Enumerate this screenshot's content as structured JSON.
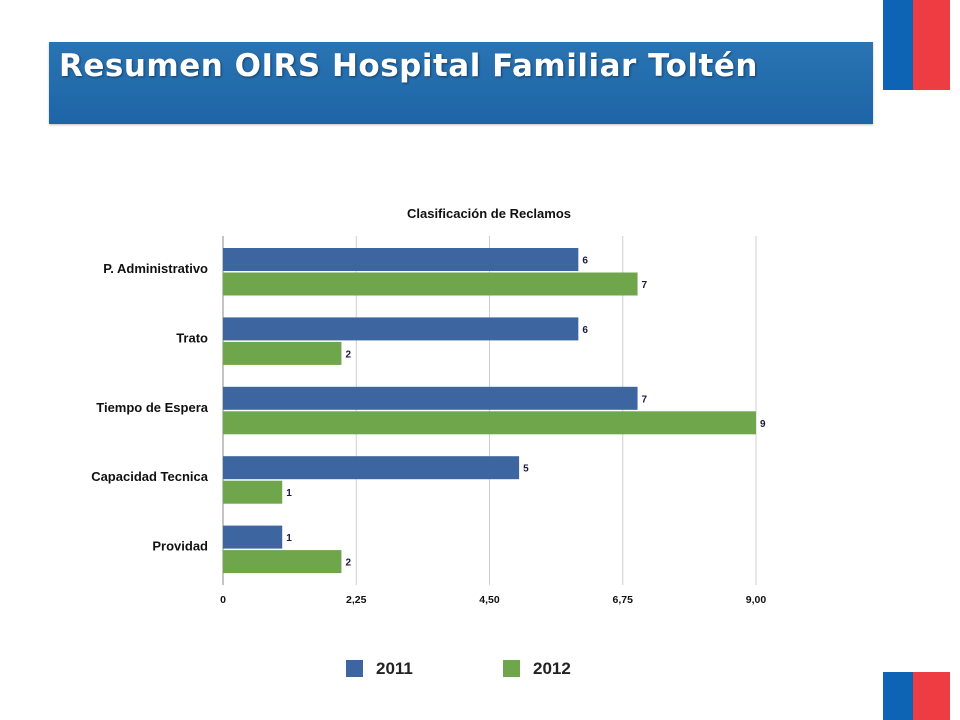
{
  "header": {
    "title": "Resumen OIRS Hospital Familiar Toltén"
  },
  "colors": {
    "banner": "#1d65a6",
    "series_2011": "#3d66a0",
    "series_2012": "#6fa64b",
    "flag_blue": "#0d64b4",
    "flag_red": "#ee3c43"
  },
  "chart_data": {
    "type": "bar",
    "orientation": "horizontal",
    "title": "Clasificación de Reclamos",
    "categories": [
      "P. Administrativo",
      "Trato",
      "Tiempo de Espera",
      "Capacidad Tecnica",
      "Providad"
    ],
    "series": [
      {
        "name": "2011",
        "color": "#3d66a0",
        "values": [
          6,
          6,
          7,
          5,
          1
        ]
      },
      {
        "name": "2012",
        "color": "#6fa64b",
        "values": [
          7,
          2,
          9,
          1,
          2
        ]
      }
    ],
    "xlim": [
      0,
      9
    ],
    "xticks": [
      0,
      2.25,
      4.5,
      6.75,
      9
    ],
    "xtick_labels": [
      "0",
      "2,25",
      "4,50",
      "6,75",
      "9,00"
    ],
    "grid": true,
    "legend_position": "bottom"
  }
}
